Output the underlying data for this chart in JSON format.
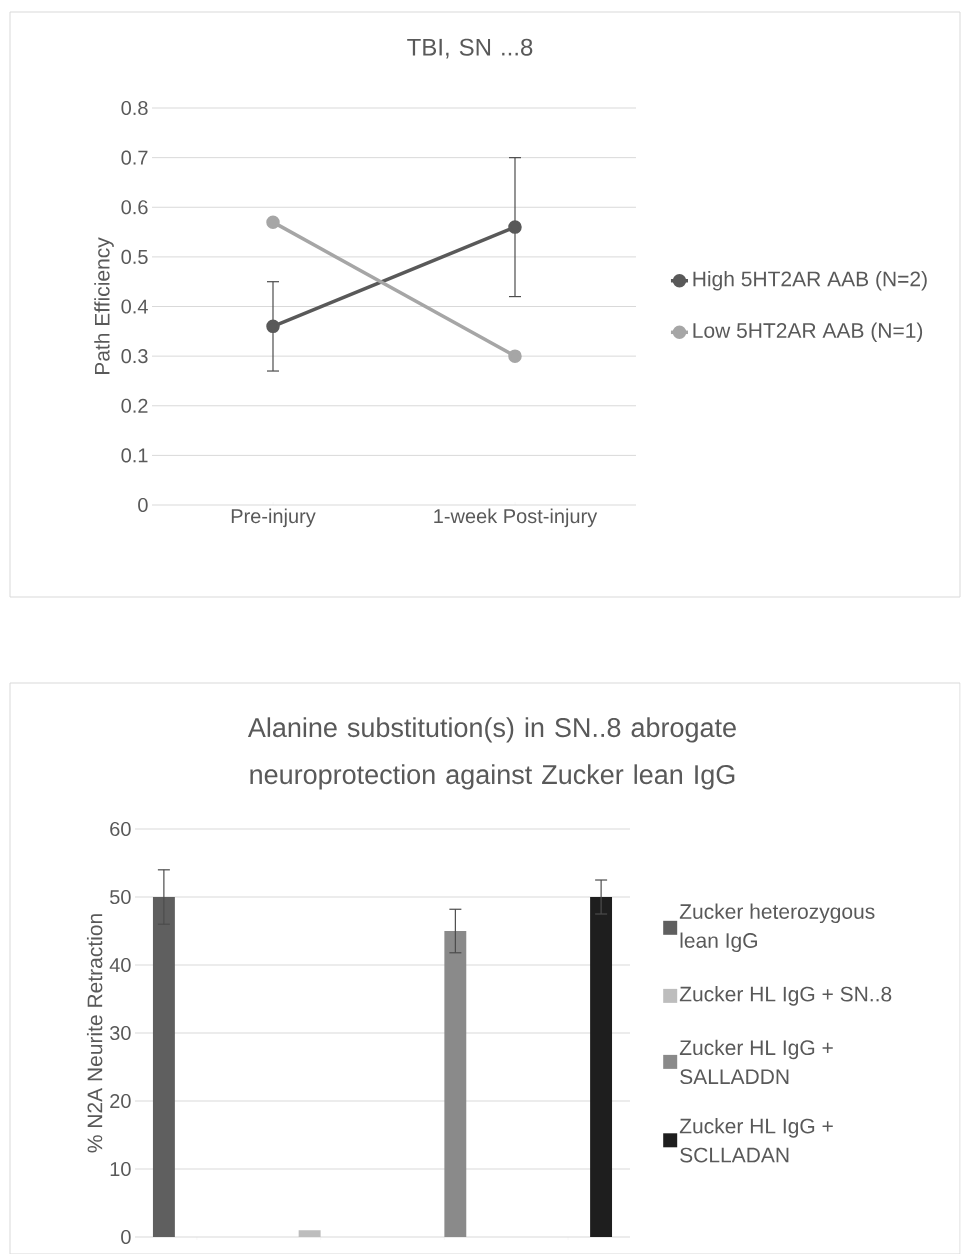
{
  "chart_data": [
    {
      "type": "line",
      "title": "TBI, SN ...8",
      "ylabel": "Path Efficiency",
      "categories": [
        "Pre-injury",
        "1-week Post-injury"
      ],
      "series": [
        {
          "name": "High 5HT2AR AAB (N=2)",
          "color": "#595959",
          "values": [
            0.36,
            0.56
          ],
          "errors": [
            0.09,
            0.14
          ]
        },
        {
          "name": "Low 5HT2AR AAB (N=1)",
          "color": "#a6a6a6",
          "values": [
            0.57,
            0.3
          ]
        }
      ],
      "ylim": [
        0,
        0.8
      ],
      "yticks": [
        0,
        0.1,
        0.2,
        0.3,
        0.4,
        0.5,
        0.6,
        0.7,
        0.8
      ],
      "grid": "y",
      "legend": "right",
      "marker": "circle",
      "line_style": "solid"
    },
    {
      "type": "bar",
      "title": "Alanine substitution(s) in SN..8 abrogate neuroprotection against Zucker lean IgG",
      "ylabel": "% N2A Neurite Retraction",
      "categories": [
        null,
        null,
        null,
        null
      ],
      "series": [
        {
          "name": "Zucker heterozygous lean IgG",
          "color": "#5f5f5f",
          "values": [
            50,
            null,
            null,
            null
          ],
          "errors": [
            4,
            null,
            null,
            null
          ]
        },
        {
          "name": "Zucker HL IgG + SN..8",
          "color": "#bdbdbd",
          "values": [
            null,
            1,
            null,
            null
          ]
        },
        {
          "name": "Zucker HL IgG + SALLADDN",
          "color": "#8a8a8a",
          "values": [
            null,
            null,
            45,
            null
          ],
          "errors": [
            null,
            null,
            3.2,
            null
          ]
        },
        {
          "name": "Zucker HL IgG + SCLLADAN",
          "color": "#1e1e1e",
          "values": [
            null,
            null,
            null,
            50
          ],
          "errors": [
            null,
            null,
            null,
            2.5
          ]
        }
      ],
      "ylim": [
        0,
        60
      ],
      "yticks": [
        0,
        10,
        20,
        30,
        40,
        50,
        60
      ],
      "grid": "y",
      "legend": "right"
    }
  ]
}
